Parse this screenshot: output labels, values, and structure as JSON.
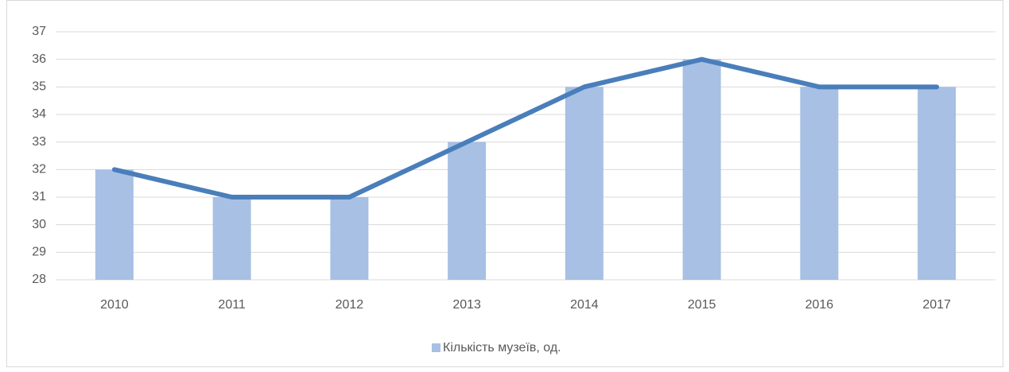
{
  "chart_data": {
    "type": "bar",
    "overlay": "line",
    "line_color": "#4a7ebb",
    "categories": [
      "2010",
      "2011",
      "2012",
      "2013",
      "2014",
      "2015",
      "2016",
      "2017"
    ],
    "series": [
      {
        "name": "Кількість музеїв, од.",
        "color": "#a7c0e4",
        "values": [
          32,
          31,
          31,
          33,
          35,
          36,
          35,
          35
        ]
      }
    ],
    "ylim": [
      28,
      37
    ],
    "yticks": [
      28,
      29,
      30,
      31,
      32,
      33,
      34,
      35,
      36,
      37
    ],
    "grid": true,
    "legend": "bottom"
  }
}
